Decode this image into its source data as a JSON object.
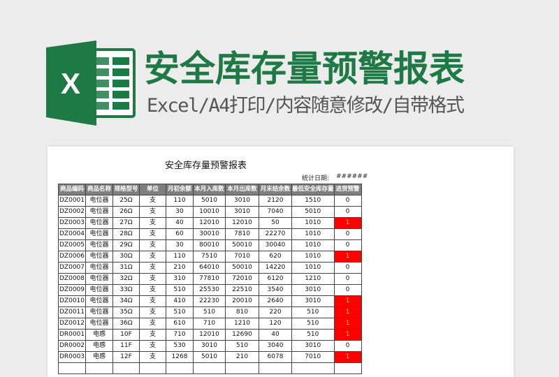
{
  "banner": {
    "title": "安全库存量预警报表",
    "subtitle": "Excel/A4打印/内容随意修改/自带格式",
    "logo_letter": "X",
    "accent_color": "#1e7a45"
  },
  "sheet": {
    "title": "安全库存量预警报表",
    "date_label": "统计日期:",
    "date_value": "######",
    "warn_color": "#ff0000",
    "columns": [
      "商品编码",
      "商品名称",
      "规格型号",
      "单位",
      "月初余额",
      "本月入库数",
      "本月出库数",
      "月末结余数",
      "最低安全库存量",
      "进货预警"
    ],
    "rows": [
      [
        "DZ0001",
        "电位器",
        "25Ω",
        "支",
        "110",
        "5010",
        "3010",
        "2120",
        "1510",
        "0"
      ],
      [
        "DZ0002",
        "电位器",
        "26Ω",
        "支",
        "30",
        "10010",
        "3010",
        "7040",
        "5010",
        "0"
      ],
      [
        "DZ0003",
        "电位器",
        "27Ω",
        "支",
        "40",
        "12010",
        "12010",
        "50",
        "1010",
        "1"
      ],
      [
        "DZ0004",
        "电位器",
        "28Ω",
        "支",
        "60",
        "30010",
        "7810",
        "22270",
        "1010",
        "0"
      ],
      [
        "DZ0005",
        "电位器",
        "29Ω",
        "支",
        "30",
        "80010",
        "50010",
        "30040",
        "1010",
        "0"
      ],
      [
        "DZ0006",
        "电位器",
        "30Ω",
        "支",
        "110",
        "7510",
        "7010",
        "620",
        "1010",
        "1"
      ],
      [
        "DZ0007",
        "电位器",
        "31Ω",
        "支",
        "210",
        "64010",
        "50010",
        "14220",
        "1010",
        "0"
      ],
      [
        "DZ0008",
        "电位器",
        "32Ω",
        "支",
        "310",
        "77810",
        "72010",
        "6120",
        "1210",
        "0"
      ],
      [
        "DZ0009",
        "电位器",
        "33Ω",
        "支",
        "510",
        "25530",
        "22510",
        "3540",
        "3010",
        "0"
      ],
      [
        "DZ0010",
        "电位器",
        "34Ω",
        "支",
        "410",
        "22230",
        "20010",
        "2640",
        "3010",
        "1"
      ],
      [
        "DZ0011",
        "电位器",
        "35Ω",
        "支",
        "510",
        "510",
        "810",
        "220",
        "510",
        "1"
      ],
      [
        "DZ0012",
        "电位器",
        "36Ω",
        "支",
        "610",
        "710",
        "1210",
        "120",
        "510",
        "1"
      ],
      [
        "DR0001",
        "电感",
        "10F",
        "支",
        "710",
        "12010",
        "12690",
        "40",
        "510",
        "1"
      ],
      [
        "DR0002",
        "电感",
        "11F",
        "支",
        "530",
        "3010",
        "510",
        "3040",
        "3010",
        "0"
      ],
      [
        "DR0003",
        "电感",
        "12F",
        "支",
        "1268",
        "5010",
        "210",
        "6078",
        "7010",
        "1"
      ]
    ]
  }
}
